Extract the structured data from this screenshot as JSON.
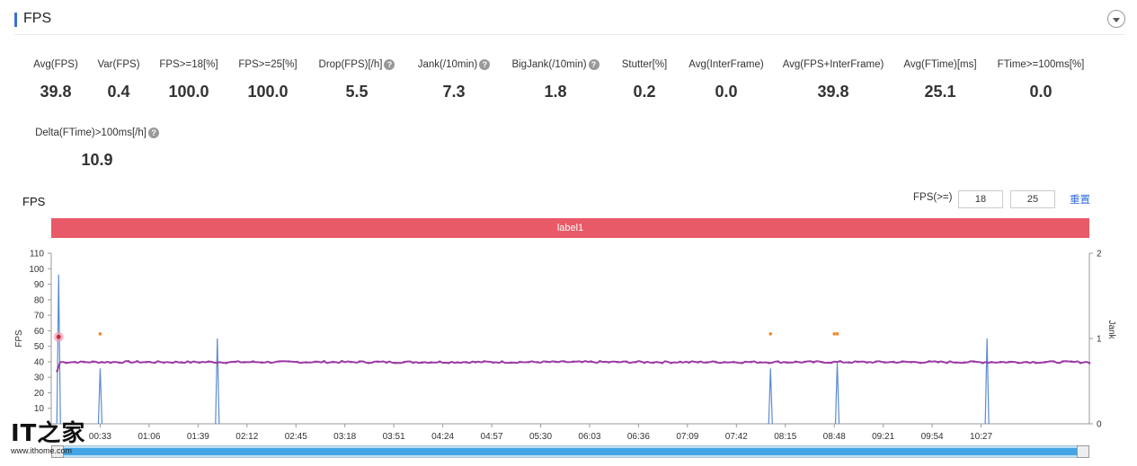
{
  "header": {
    "title": "FPS"
  },
  "metrics_row1": [
    {
      "label": "Avg(FPS)",
      "value": "39.8",
      "help": false
    },
    {
      "label": "Var(FPS)",
      "value": "0.4",
      "help": false
    },
    {
      "label": "FPS>=18[%]",
      "value": "100.0",
      "help": false
    },
    {
      "label": "FPS>=25[%]",
      "value": "100.0",
      "help": false
    },
    {
      "label": "Drop(FPS)[/h]",
      "value": "5.5",
      "help": true
    },
    {
      "label": "Jank(/10min)",
      "value": "7.3",
      "help": true
    },
    {
      "label": "BigJank(/10min)",
      "value": "1.8",
      "help": true
    },
    {
      "label": "Stutter[%]",
      "value": "0.2",
      "help": false
    },
    {
      "label": "Avg(InterFrame)",
      "value": "0.0",
      "help": false
    },
    {
      "label": "Avg(FPS+InterFrame)",
      "value": "39.8",
      "help": false
    },
    {
      "label": "Avg(FTime)[ms]",
      "value": "25.1",
      "help": false
    },
    {
      "label": "FTime>=100ms[%]",
      "value": "0.0",
      "help": false
    }
  ],
  "metrics_row2": [
    {
      "label": "Delta(FTime)>100ms[/h]",
      "value": "10.9",
      "help": true
    }
  ],
  "chart_section": {
    "title": "FPS",
    "threshold_label": "FPS(>=)",
    "threshold_low": "18",
    "threshold_high": "25",
    "reset_label": "重置",
    "label_bar": "label1"
  },
  "watermark": {
    "logo": "IT之家",
    "url": "www.ithome.com"
  },
  "chart_data": {
    "type": "line",
    "title": "FPS",
    "ylabel": "FPS",
    "y2label": "Jank",
    "ylim": [
      0,
      110
    ],
    "y2lim": [
      0,
      2
    ],
    "yticks": [
      10,
      20,
      30,
      40,
      50,
      60,
      70,
      80,
      90,
      100,
      110
    ],
    "y2ticks": [
      0,
      1,
      2
    ],
    "xlim_seconds": [
      0,
      700
    ],
    "xticks": [
      "00:33",
      "01:06",
      "01:39",
      "02:12",
      "02:45",
      "03:18",
      "03:51",
      "04:24",
      "04:57",
      "05:30",
      "06:03",
      "06:36",
      "07:09",
      "07:42",
      "08:15",
      "08:48",
      "09:21",
      "09:54",
      "10:27"
    ],
    "xtick_seconds": [
      33,
      66,
      99,
      132,
      165,
      198,
      231,
      264,
      297,
      330,
      363,
      396,
      429,
      462,
      495,
      528,
      561,
      594,
      627
    ],
    "series": [
      {
        "name": "FPS",
        "color": "#9b3aa5",
        "baseline": 39.8,
        "variation": 0.6,
        "start_point": [
          4,
          34
        ]
      },
      {
        "name": "Jank",
        "color": "#5b8bd0",
        "spike_times": [
          5,
          33,
          112,
          485,
          530,
          631
        ],
        "spike_heights": [
          1.75,
          0.65,
          1.0,
          0.65,
          0.72,
          1.0
        ]
      },
      {
        "name": "BigJank",
        "color": "#f08a30",
        "marker_times": [
          33,
          485,
          528,
          530
        ],
        "marker_value": 58
      }
    ],
    "highlight_point": {
      "time": 5,
      "value": 56
    }
  }
}
